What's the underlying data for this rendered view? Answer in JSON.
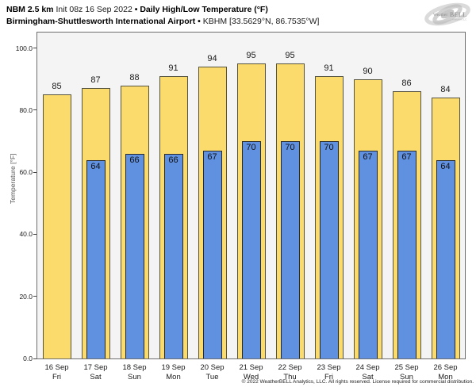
{
  "header": {
    "model": "NBM 2.5 km",
    "init": "Init 08z 16 Sep 2022",
    "separator": "•",
    "product": "Daily High/Low Temperature (°F)",
    "station": "Birmingham-Shuttlesworth International Airport",
    "station_id": "KBHM [33.5629°N, 86.7535°W]"
  },
  "logo": {
    "text_weather": "Weather",
    "text_bell": "BELL",
    "subtext": "Analytics LLC"
  },
  "chart_data": {
    "type": "bar",
    "title": "Daily High/Low Temperature (°F)",
    "xlabel": "",
    "ylabel": "Temperature [°F]",
    "ylim": [
      0,
      105
    ],
    "yticks": [
      0,
      20,
      40,
      60,
      80,
      100
    ],
    "ytick_decimals": 1,
    "grid": false,
    "legend_position": "none",
    "plot_background": "#f4f4f4",
    "categories": [
      {
        "date": "16 Sep",
        "day": "Fri"
      },
      {
        "date": "17 Sep",
        "day": "Sat"
      },
      {
        "date": "18 Sep",
        "day": "Sun"
      },
      {
        "date": "19 Sep",
        "day": "Mon"
      },
      {
        "date": "20 Sep",
        "day": "Tue"
      },
      {
        "date": "21 Sep",
        "day": "Wed"
      },
      {
        "date": "22 Sep",
        "day": "Thu"
      },
      {
        "date": "23 Sep",
        "day": "Fri"
      },
      {
        "date": "24 Sep",
        "day": "Sat"
      },
      {
        "date": "25 Sep",
        "day": "Sun"
      },
      {
        "date": "26 Sep",
        "day": "Mon"
      }
    ],
    "series": [
      {
        "name": "High",
        "color": "#fbdb6b",
        "values": [
          85,
          87,
          88,
          91,
          94,
          95,
          95,
          91,
          90,
          86,
          84
        ]
      },
      {
        "name": "Low",
        "color": "#6090e0",
        "values": [
          null,
          64,
          66,
          66,
          67,
          70,
          70,
          70,
          67,
          67,
          64
        ]
      }
    ]
  },
  "footer": {
    "copyright": "© 2022 WeatherBELL Analytics, LLC. All rights reserved. License required for commercial distribution."
  }
}
